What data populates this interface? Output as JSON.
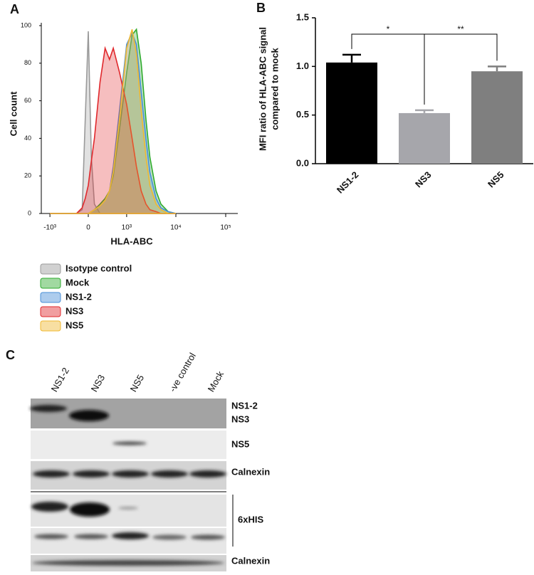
{
  "panel_labels": [
    "A",
    "B",
    "C"
  ],
  "chart_data": [
    {
      "type": "area",
      "ylabel": "Cell count",
      "xlabel": "HLA-ABC",
      "xscale": "biexponential",
      "x": [
        -1000,
        -500,
        -200,
        -100,
        -50,
        0,
        50,
        100,
        200,
        300,
        400,
        500,
        700,
        1000,
        1300,
        1600,
        2000,
        2500,
        3000,
        4000,
        5000,
        7000,
        10000
      ],
      "series": [
        {
          "name": "Isotype control",
          "color": "#9a9a9a",
          "values": [
            0,
            0,
            0,
            2,
            50,
            97,
            30,
            5,
            0,
            0,
            0,
            0,
            0,
            0,
            0,
            0,
            0,
            0,
            0,
            0,
            0,
            0,
            0
          ]
        },
        {
          "name": "Mock",
          "color": "#2eaa2e",
          "values": [
            0,
            0,
            0,
            0,
            0,
            0,
            1,
            2,
            5,
            8,
            12,
            20,
            45,
            75,
            95,
            98,
            80,
            50,
            30,
            12,
            5,
            1,
            0
          ]
        },
        {
          "name": "NS1-2",
          "color": "#4a8fd6",
          "values": [
            0,
            0,
            0,
            0,
            0,
            0,
            1,
            2,
            4,
            7,
            12,
            25,
            55,
            90,
            96,
            90,
            65,
            40,
            22,
            8,
            3,
            1,
            0
          ]
        },
        {
          "name": "NS3",
          "color": "#e0282c",
          "values": [
            0,
            0,
            0,
            3,
            8,
            15,
            28,
            40,
            70,
            88,
            82,
            88,
            75,
            58,
            40,
            25,
            12,
            5,
            2,
            1,
            0,
            0,
            0
          ]
        },
        {
          "name": "NS5",
          "color": "#f0b830",
          "values": [
            0,
            0,
            0,
            0,
            0,
            0,
            1,
            2,
            4,
            7,
            12,
            22,
            50,
            88,
            98,
            85,
            55,
            30,
            15,
            5,
            2,
            0,
            0
          ]
        }
      ],
      "ylim": [
        0,
        100
      ],
      "yticks": [
        0,
        20,
        40,
        60,
        80,
        100
      ],
      "xlim": [
        -1000,
        100000
      ],
      "xticks": [
        {
          "value": -1000,
          "label": "-10³"
        },
        0,
        {
          "value": 1000,
          "label": "10³"
        },
        {
          "value": 10000,
          "label": "10⁴"
        },
        {
          "value": 100000,
          "label": "10⁵"
        }
      ]
    },
    {
      "type": "bar",
      "ylabel": [
        "MFI ratio of HLA-ABC signal",
        "compared to mock"
      ],
      "categories": [
        "NS1-2",
        "NS3",
        "NS5"
      ],
      "values": [
        1.04,
        0.52,
        0.95
      ],
      "errors": [
        0.08,
        0.03,
        0.05
      ],
      "colors": [
        "#000000",
        "#a6a6ab",
        "#7f7f7f"
      ],
      "ylim": [
        0,
        1.5
      ],
      "yticks": [
        {
          "value": 0,
          "label": "0.0"
        },
        0.5,
        {
          "value": 1,
          "label": "1.0"
        },
        1.5
      ],
      "annotations": [
        "*",
        "**"
      ]
    }
  ],
  "blot": {
    "lanes": [
      "NS1-2",
      "NS3",
      "NS5",
      "-ve control",
      "Mock"
    ],
    "labels": [
      "NS1-2",
      "NS3",
      "NS5",
      "Calnexin",
      "6xHIS",
      "Calnexin"
    ]
  }
}
